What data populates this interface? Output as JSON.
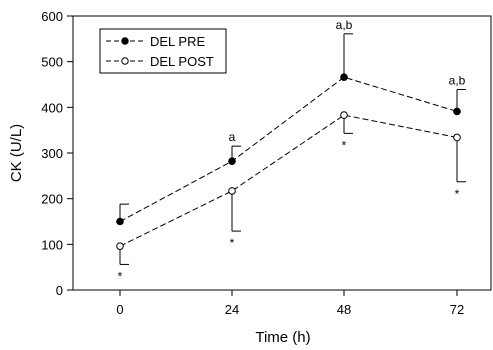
{
  "chart_data": {
    "type": "line",
    "xlabel": "Time (h)",
    "ylabel": "CK (U/L)",
    "x": [
      0,
      24,
      48,
      72
    ],
    "x_ticks": [
      "0",
      "24",
      "48",
      "72"
    ],
    "y_ticks": [
      "0",
      "100",
      "200",
      "300",
      "400",
      "500",
      "600"
    ],
    "ylim": [
      0,
      600
    ],
    "legend_position": "top-left",
    "grid": false,
    "series": [
      {
        "name": "DEL PRE",
        "marker": "filled-circle",
        "values": [
          150,
          282,
          466,
          391
        ],
        "error": [
          38,
          33,
          95,
          48
        ],
        "error_direction": "up",
        "annotations": [
          "",
          "a",
          "a,b",
          "a,b"
        ]
      },
      {
        "name": "DEL POST",
        "marker": "open-circle",
        "values": [
          96,
          217,
          383,
          334
        ],
        "error": [
          40,
          88,
          40,
          97
        ],
        "error_direction": "down",
        "annotations": [
          "*",
          "*",
          "*",
          "*"
        ]
      }
    ]
  }
}
